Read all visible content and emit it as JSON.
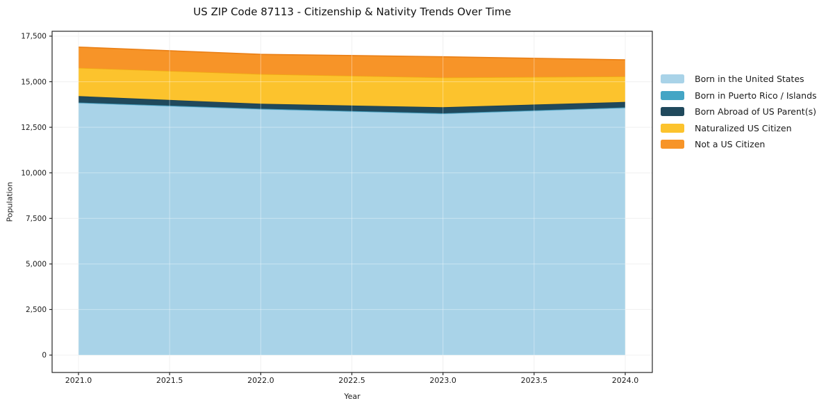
{
  "title": "US ZIP Code 87113 - Citizenship & Nativity Trends Over Time",
  "chart_data": {
    "type": "area",
    "stacked": true,
    "title": "US ZIP Code 87113 - Citizenship & Nativity Trends Over Time",
    "xlabel": "Year",
    "ylabel": "Population",
    "x": [
      2021,
      2022,
      2023,
      2024
    ],
    "series": [
      {
        "name": "Born in the United States",
        "color": "#a9d3e8",
        "edge": "#8fc4df",
        "values": [
          13830,
          13490,
          13240,
          13560
        ]
      },
      {
        "name": "Born in Puerto Rico / Islands",
        "color": "#44a5c5",
        "edge": "#3b93b1",
        "values": [
          30,
          30,
          30,
          30
        ]
      },
      {
        "name": "Born Abroad of US Parent(s)",
        "color": "#20495c",
        "edge": "#1b3f50",
        "values": [
          350,
          270,
          330,
          300
        ]
      },
      {
        "name": "Naturalized US Citizen",
        "color": "#fcc32d",
        "edge": "#f0ab14",
        "values": [
          1550,
          1630,
          1630,
          1400
        ]
      },
      {
        "name": "Not a US Citizen",
        "color": "#f79428",
        "edge": "#ea7f15",
        "values": [
          1140,
          1080,
          1140,
          910
        ]
      }
    ],
    "stack_totals": [
      16900,
      16500,
      16370,
      16200
    ],
    "x_tick_values": [
      2021,
      2021.5,
      2022,
      2022.5,
      2023,
      2023.5,
      2024
    ],
    "x_tick_labels": [
      "2021.0",
      "2021.5",
      "2022.0",
      "2022.5",
      "2023.0",
      "2023.5",
      "2024.0"
    ],
    "y_tick_values": [
      0,
      2500,
      5000,
      7500,
      10000,
      12500,
      15000,
      17500
    ],
    "y_tick_labels": [
      "0",
      "2,500",
      "5,000",
      "7,500",
      "10,000",
      "12,500",
      "15,000",
      "17,500"
    ],
    "ylim": [
      0,
      17500
    ],
    "grid": true,
    "legend_position": "right",
    "spine_color": "#262626",
    "grid_color": "#e9e9e9"
  }
}
